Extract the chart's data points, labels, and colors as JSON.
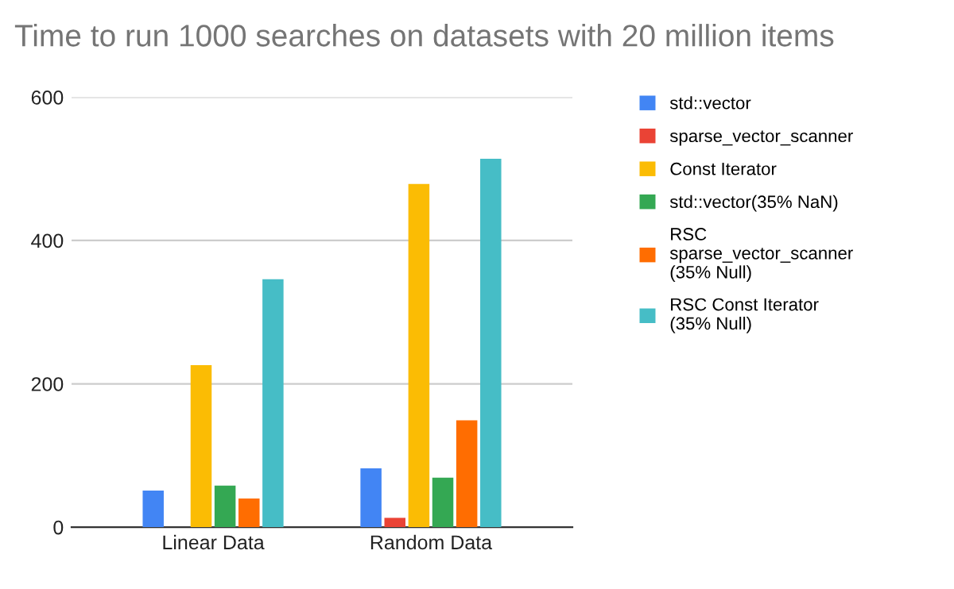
{
  "chart_data": {
    "type": "bar",
    "title": "Time to run 1000 searches on datasets with 20 million items",
    "categories": [
      "Linear Data",
      "Random Data"
    ],
    "series": [
      {
        "name": "std::vector",
        "color": "#4285f4",
        "values": [
          51,
          82
        ]
      },
      {
        "name": "sparse_vector_scanner",
        "color": "#ea4335",
        "values": [
          null,
          13
        ]
      },
      {
        "name": "Const Iterator",
        "color": "#fbbc04",
        "values": [
          226,
          479
        ]
      },
      {
        "name": "std::vector(35% NaN)",
        "color": "#34a853",
        "values": [
          58,
          69
        ]
      },
      {
        "name": "RSC sparse_vector_scanner (35% Null)",
        "color": "#ff6d01",
        "values": [
          40,
          149
        ]
      },
      {
        "name": "RSC Const Iterator (35% Null)",
        "color": "#46bdc6",
        "values": [
          346,
          514
        ]
      }
    ],
    "ylim": [
      0,
      600
    ],
    "yticks": [
      0,
      200,
      400,
      600
    ],
    "grid": "y",
    "legend": "right"
  }
}
